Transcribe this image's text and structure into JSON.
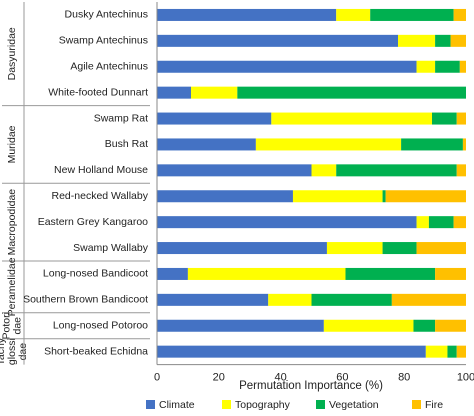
{
  "chart_data": {
    "type": "bar",
    "orientation": "horizontal",
    "stacked": true,
    "xlabel": "Permutation Importance (%)",
    "xlim": [
      0,
      100
    ],
    "xticks": [
      0,
      20,
      40,
      60,
      80,
      100
    ],
    "grid": false,
    "legend_position": "bottom",
    "categories": [
      "Dusky Antechinus",
      "Swamp Antechinus",
      "Agile Antechinus",
      "White-footed Dunnart",
      "Swamp Rat",
      "Bush Rat",
      "New Holland Mouse",
      "Red-necked Wallaby",
      "Eastern Grey Kangaroo",
      "Swamp Wallaby",
      "Long-nosed Bandicoot",
      "Southern Brown Bandicoot",
      "Long-nosed Potoroo",
      "Short-beaked Echidna"
    ],
    "groups": [
      {
        "label": "Dasyuridae",
        "lines": [
          "Dasyuridae"
        ],
        "from": 0,
        "to": 3
      },
      {
        "label": "Muridae",
        "lines": [
          "Muridae"
        ],
        "from": 4,
        "to": 6
      },
      {
        "label": "Macropodidae",
        "lines": [
          "Macropodidae"
        ],
        "from": 7,
        "to": 9
      },
      {
        "label": "Peramelidae",
        "lines": [
          "Peramelidae"
        ],
        "from": 10,
        "to": 11
      },
      {
        "label": "Potoridae",
        "lines": [
          "Potori",
          "dae"
        ],
        "from": 12,
        "to": 12
      },
      {
        "label": "Tachyglossidae",
        "lines": [
          "Tachy",
          "glossi",
          "dae"
        ],
        "from": 13,
        "to": 13
      }
    ],
    "series": [
      {
        "name": "Climate",
        "color": "#4472C4",
        "values": [
          58,
          78,
          84,
          11,
          37,
          32,
          50,
          44,
          84,
          55,
          10,
          36,
          54,
          87
        ]
      },
      {
        "name": "Topography",
        "color": "#FFFF00",
        "values": [
          11,
          12,
          6,
          15,
          52,
          47,
          8,
          29,
          4,
          18,
          51,
          14,
          29,
          7
        ]
      },
      {
        "name": "Vegetation",
        "color": "#00B050",
        "values": [
          27,
          5,
          8,
          74,
          8,
          20,
          39,
          1,
          8,
          11,
          29,
          26,
          7,
          3
        ]
      },
      {
        "name": "Fire",
        "color": "#FFC000",
        "values": [
          4,
          5,
          2,
          0,
          3,
          1,
          3,
          26,
          4,
          16,
          10,
          24,
          10,
          3
        ]
      }
    ]
  }
}
